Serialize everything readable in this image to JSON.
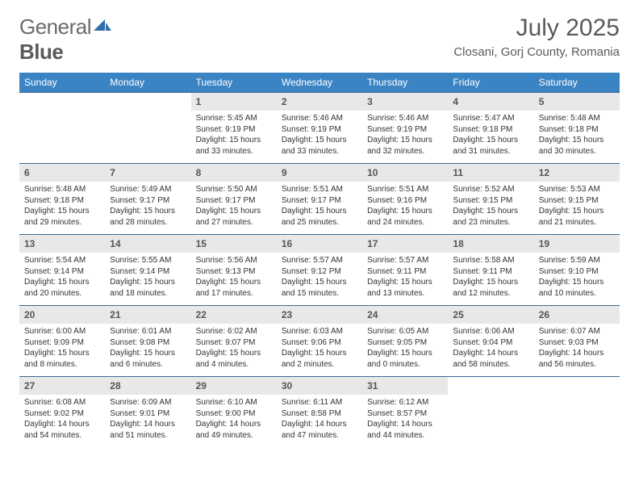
{
  "logo": {
    "text1": "General",
    "text2": "Blue"
  },
  "title": "July 2025",
  "location": "Closani, Gorj County, Romania",
  "colors": {
    "header_bg": "#3b84c4",
    "header_text": "#ffffff",
    "daynum_bg": "#e8e8e8",
    "row_border": "#3b6a94",
    "logo_accent": "#2f6fa8"
  },
  "weekdays": [
    "Sunday",
    "Monday",
    "Tuesday",
    "Wednesday",
    "Thursday",
    "Friday",
    "Saturday"
  ],
  "weeks": [
    [
      {
        "empty": true
      },
      {
        "empty": true
      },
      {
        "n": "1",
        "sr": "5:45 AM",
        "ss": "9:19 PM",
        "dl": "15 hours and 33 minutes."
      },
      {
        "n": "2",
        "sr": "5:46 AM",
        "ss": "9:19 PM",
        "dl": "15 hours and 33 minutes."
      },
      {
        "n": "3",
        "sr": "5:46 AM",
        "ss": "9:19 PM",
        "dl": "15 hours and 32 minutes."
      },
      {
        "n": "4",
        "sr": "5:47 AM",
        "ss": "9:18 PM",
        "dl": "15 hours and 31 minutes."
      },
      {
        "n": "5",
        "sr": "5:48 AM",
        "ss": "9:18 PM",
        "dl": "15 hours and 30 minutes."
      }
    ],
    [
      {
        "n": "6",
        "sr": "5:48 AM",
        "ss": "9:18 PM",
        "dl": "15 hours and 29 minutes."
      },
      {
        "n": "7",
        "sr": "5:49 AM",
        "ss": "9:17 PM",
        "dl": "15 hours and 28 minutes."
      },
      {
        "n": "8",
        "sr": "5:50 AM",
        "ss": "9:17 PM",
        "dl": "15 hours and 27 minutes."
      },
      {
        "n": "9",
        "sr": "5:51 AM",
        "ss": "9:17 PM",
        "dl": "15 hours and 25 minutes."
      },
      {
        "n": "10",
        "sr": "5:51 AM",
        "ss": "9:16 PM",
        "dl": "15 hours and 24 minutes."
      },
      {
        "n": "11",
        "sr": "5:52 AM",
        "ss": "9:15 PM",
        "dl": "15 hours and 23 minutes."
      },
      {
        "n": "12",
        "sr": "5:53 AM",
        "ss": "9:15 PM",
        "dl": "15 hours and 21 minutes."
      }
    ],
    [
      {
        "n": "13",
        "sr": "5:54 AM",
        "ss": "9:14 PM",
        "dl": "15 hours and 20 minutes."
      },
      {
        "n": "14",
        "sr": "5:55 AM",
        "ss": "9:14 PM",
        "dl": "15 hours and 18 minutes."
      },
      {
        "n": "15",
        "sr": "5:56 AM",
        "ss": "9:13 PM",
        "dl": "15 hours and 17 minutes."
      },
      {
        "n": "16",
        "sr": "5:57 AM",
        "ss": "9:12 PM",
        "dl": "15 hours and 15 minutes."
      },
      {
        "n": "17",
        "sr": "5:57 AM",
        "ss": "9:11 PM",
        "dl": "15 hours and 13 minutes."
      },
      {
        "n": "18",
        "sr": "5:58 AM",
        "ss": "9:11 PM",
        "dl": "15 hours and 12 minutes."
      },
      {
        "n": "19",
        "sr": "5:59 AM",
        "ss": "9:10 PM",
        "dl": "15 hours and 10 minutes."
      }
    ],
    [
      {
        "n": "20",
        "sr": "6:00 AM",
        "ss": "9:09 PM",
        "dl": "15 hours and 8 minutes."
      },
      {
        "n": "21",
        "sr": "6:01 AM",
        "ss": "9:08 PM",
        "dl": "15 hours and 6 minutes."
      },
      {
        "n": "22",
        "sr": "6:02 AM",
        "ss": "9:07 PM",
        "dl": "15 hours and 4 minutes."
      },
      {
        "n": "23",
        "sr": "6:03 AM",
        "ss": "9:06 PM",
        "dl": "15 hours and 2 minutes."
      },
      {
        "n": "24",
        "sr": "6:05 AM",
        "ss": "9:05 PM",
        "dl": "15 hours and 0 minutes."
      },
      {
        "n": "25",
        "sr": "6:06 AM",
        "ss": "9:04 PM",
        "dl": "14 hours and 58 minutes."
      },
      {
        "n": "26",
        "sr": "6:07 AM",
        "ss": "9:03 PM",
        "dl": "14 hours and 56 minutes."
      }
    ],
    [
      {
        "n": "27",
        "sr": "6:08 AM",
        "ss": "9:02 PM",
        "dl": "14 hours and 54 minutes."
      },
      {
        "n": "28",
        "sr": "6:09 AM",
        "ss": "9:01 PM",
        "dl": "14 hours and 51 minutes."
      },
      {
        "n": "29",
        "sr": "6:10 AM",
        "ss": "9:00 PM",
        "dl": "14 hours and 49 minutes."
      },
      {
        "n": "30",
        "sr": "6:11 AM",
        "ss": "8:58 PM",
        "dl": "14 hours and 47 minutes."
      },
      {
        "n": "31",
        "sr": "6:12 AM",
        "ss": "8:57 PM",
        "dl": "14 hours and 44 minutes."
      },
      {
        "empty": true
      },
      {
        "empty": true
      }
    ]
  ],
  "labels": {
    "sunrise": "Sunrise:",
    "sunset": "Sunset:",
    "daylight": "Daylight:"
  }
}
